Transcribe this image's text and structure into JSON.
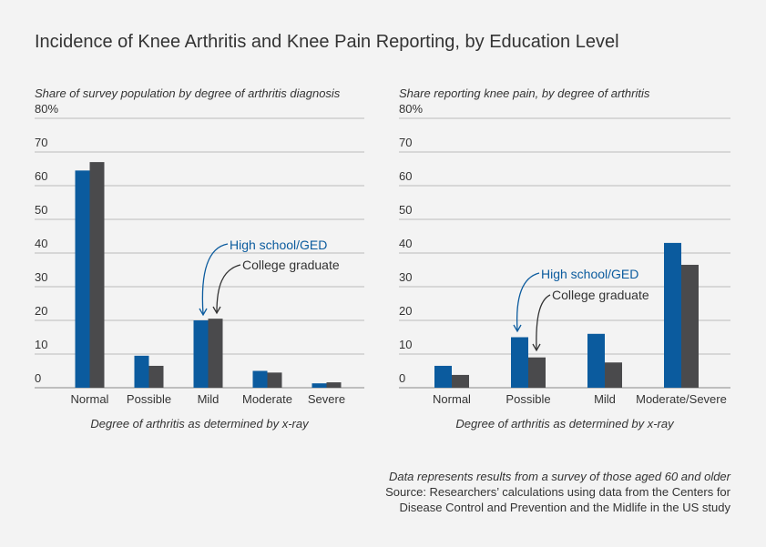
{
  "title": "Incidence of Knee Arthritis and Knee Pain Reporting, by Education Level",
  "footnote": [
    "Data represents results from a survey of those aged 60 and older",
    "Source: Researchers’ calculations using data from the Centers for",
    "Disease Control and Prevention and the Midlife in the US study"
  ],
  "chart_data": [
    {
      "type": "bar",
      "subtitle": "Share of survey population by degree of arthritis diagnosis",
      "x_label": "Degree of arthritis as determined by x-ray",
      "categories": [
        "Normal",
        "Possible",
        "Mild",
        "Moderate",
        "Severe"
      ],
      "series": [
        {
          "name": "High school/GED",
          "color": "#0b5b9e",
          "values": [
            64.5,
            9.5,
            20,
            5,
            1.3
          ]
        },
        {
          "name": "College graduate",
          "color": "#4a4a4c",
          "values": [
            67,
            6.5,
            20.5,
            4.5,
            1.6
          ]
        }
      ],
      "ylim": [
        0,
        80
      ],
      "yticks": [
        0,
        10,
        20,
        30,
        40,
        50,
        60,
        70,
        {
          "value": 80,
          "label": "80%"
        }
      ],
      "grid": true
    },
    {
      "type": "bar",
      "subtitle": "Share reporting knee pain, by degree of arthritis",
      "x_label": "Degree of arthritis as determined by x-ray",
      "categories": [
        "Normal",
        "Possible",
        "Mild",
        "Moderate/Severe"
      ],
      "series": [
        {
          "name": "High school/GED",
          "color": "#0b5b9e",
          "values": [
            6.5,
            15,
            16,
            43
          ]
        },
        {
          "name": "College graduate",
          "color": "#4a4a4c",
          "values": [
            3.8,
            9,
            7.5,
            36.5
          ]
        }
      ],
      "ylim": [
        0,
        80
      ],
      "yticks": [
        0,
        10,
        20,
        30,
        40,
        50,
        60,
        70,
        {
          "value": 80,
          "label": "80%"
        }
      ],
      "grid": true
    }
  ]
}
